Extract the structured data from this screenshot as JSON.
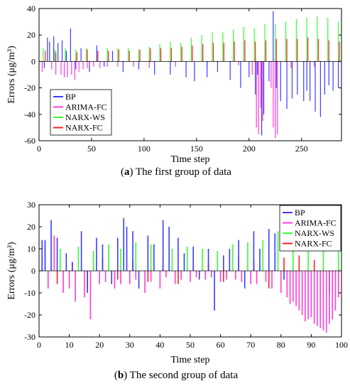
{
  "chart_data": [
    {
      "type": "bar",
      "caption_letter": "a",
      "caption_prefix": "(",
      "caption_suffix": ") The first group of data",
      "xlabel": "Time step",
      "ylabel": "Errors (μg/m³)",
      "xlim": [
        0,
        288
      ],
      "ylim": [
        -60,
        40
      ],
      "xticks": [
        0,
        50,
        100,
        150,
        200,
        250
      ],
      "yticks": [
        -60,
        -40,
        -20,
        0,
        20,
        40
      ],
      "legend_position": "bottom-left",
      "grid": false,
      "series_colors": [
        "#3b3bff",
        "#ff3bd8",
        "#33ff33",
        "#ff2222"
      ],
      "series": [
        {
          "name": "BP",
          "x": [
            5,
            8,
            10,
            14,
            18,
            22,
            26,
            30,
            35,
            40,
            48,
            55,
            62,
            70,
            80,
            95,
            110,
            125,
            140,
            148,
            160,
            170,
            182,
            192,
            200,
            206,
            208,
            212,
            214,
            219,
            223,
            226,
            230,
            236,
            241,
            246,
            252,
            255,
            258,
            263,
            268,
            272,
            276,
            280,
            285
          ],
          "y": [
            -5,
            18,
            15,
            19,
            14,
            16,
            8,
            25,
            -6,
            10,
            -8,
            12,
            -4,
            8,
            -8,
            -6,
            -10,
            -10,
            -12,
            -15,
            -12,
            -8,
            -14,
            -20,
            -12,
            -25,
            -10,
            -56,
            -40,
            -15,
            38,
            -20,
            -30,
            -36,
            -28,
            -25,
            -30,
            -22,
            -30,
            -38,
            -42,
            -25,
            -18,
            -22,
            -20
          ]
        },
        {
          "name": "ARIMA-FC",
          "x": [
            3,
            12,
            16,
            21,
            24,
            27,
            31,
            34,
            38,
            42,
            46,
            52,
            58,
            65,
            75,
            90,
            105,
            130,
            160,
            190,
            203,
            207,
            209,
            211,
            213,
            221,
            223,
            225,
            227,
            240,
            262
          ],
          "y": [
            -8,
            -6,
            -10,
            -10,
            -12,
            -12,
            -10,
            -14,
            -8,
            -6,
            -5,
            -4,
            -5,
            -4,
            -4,
            -4,
            -5,
            -4,
            -4,
            -3,
            -10,
            -50,
            -55,
            -35,
            -45,
            -20,
            -50,
            -58,
            -55,
            -5,
            -4
          ]
        },
        {
          "name": "NARX-WS",
          "x": [
            4,
            15,
            25,
            35,
            45,
            55,
            65,
            75,
            85,
            95,
            105,
            115,
            125,
            135,
            145,
            155,
            165,
            175,
            185,
            195,
            205,
            215,
            225,
            235,
            245,
            255,
            265,
            275,
            285
          ],
          "y": [
            10,
            9,
            10,
            9,
            10,
            9,
            10,
            10,
            10,
            9,
            11,
            13,
            15,
            14,
            18,
            20,
            22,
            22,
            24,
            26,
            25,
            28,
            28,
            30,
            32,
            33,
            34,
            33,
            30
          ]
        },
        {
          "name": "NARX-FC",
          "x": [
            6,
            16,
            26,
            36,
            46,
            56,
            66,
            76,
            86,
            96,
            106,
            116,
            126,
            136,
            146,
            156,
            166,
            176,
            186,
            196,
            206,
            216,
            226,
            236,
            246,
            256,
            266,
            276,
            286
          ],
          "y": [
            8,
            7,
            8,
            7,
            9,
            8,
            8,
            9,
            8,
            9,
            10,
            10,
            10,
            11,
            12,
            13,
            14,
            14,
            15,
            16,
            15,
            16,
            17,
            17,
            17,
            18,
            17,
            16,
            15
          ]
        }
      ]
    },
    {
      "type": "bar",
      "caption_letter": "b",
      "caption_prefix": "(",
      "caption_suffix": ") The second group of data",
      "xlabel": "Time step",
      "ylabel": "Errors (μg/m³)",
      "xlim": [
        0,
        100
      ],
      "ylim": [
        -30,
        30
      ],
      "xticks": [
        0,
        10,
        20,
        30,
        40,
        50,
        60,
        70,
        80,
        90,
        100
      ],
      "yticks": [
        -30,
        -20,
        -10,
        0,
        10,
        20,
        30
      ],
      "legend_position": "top-right",
      "grid": false,
      "series_colors": [
        "#3b3bff",
        "#ff3bd8",
        "#33ff33",
        "#ff2222"
      ],
      "series": [
        {
          "name": "BP",
          "x": [
            1,
            2,
            4,
            6,
            9,
            11,
            14,
            16,
            19,
            21,
            24,
            26,
            28,
            29,
            31,
            33,
            36,
            38,
            41,
            43,
            46,
            48,
            51,
            53,
            56,
            58,
            61,
            63,
            66,
            68,
            71,
            73,
            76,
            78,
            81
          ],
          "y": [
            14,
            14,
            23,
            15,
            8,
            4,
            18,
            -10,
            15,
            12,
            -6,
            15,
            24,
            20,
            18,
            -8,
            16,
            12,
            23,
            20,
            15,
            8,
            11,
            -4,
            10,
            -18,
            7,
            10,
            14,
            -8,
            18,
            10,
            19,
            17,
            -4
          ]
        },
        {
          "name": "ARIMA-FC",
          "x": [
            3,
            5,
            8,
            10,
            12,
            15,
            17,
            20,
            22,
            25,
            27,
            30,
            32,
            35,
            37,
            40,
            42,
            45,
            47,
            50,
            52,
            55,
            57,
            60,
            62,
            65,
            67,
            70,
            72,
            75,
            77,
            80,
            82,
            83,
            84,
            85,
            86,
            87,
            88,
            89,
            90,
            91,
            92,
            93,
            94,
            95,
            96,
            97,
            98,
            99
          ],
          "y": [
            -8,
            16,
            -10,
            -8,
            -14,
            -12,
            -22,
            -6,
            -5,
            -8,
            -6,
            -6,
            -4,
            -10,
            -5,
            -8,
            -3,
            -6,
            -4,
            -5,
            -3,
            -4,
            -3,
            -5,
            -4,
            -4,
            -5,
            -6,
            -6,
            -5,
            -8,
            -10,
            -12,
            -15,
            -14,
            -16,
            -18,
            -20,
            -23,
            -22,
            -21,
            -24,
            -25,
            -26,
            -27,
            -28,
            -24,
            -22,
            -18,
            -12
          ]
        },
        {
          "name": "NARX-WS",
          "x": [
            2,
            7,
            13,
            18,
            23,
            27,
            32,
            37,
            44,
            49,
            54,
            59,
            64,
            69,
            74,
            79,
            84,
            89,
            94,
            99
          ],
          "y": [
            12,
            10,
            11,
            9,
            12,
            10,
            13,
            12,
            10,
            11,
            10,
            9,
            12,
            13,
            14,
            18,
            16,
            14,
            13,
            15
          ]
        },
        {
          "name": "NARX-FC",
          "x": [
            1,
            6,
            11,
            16,
            21,
            26,
            31,
            36,
            41,
            46,
            51,
            56,
            61,
            66,
            71,
            76,
            81,
            86,
            91,
            96
          ],
          "y": [
            5,
            -6,
            4,
            -8,
            6,
            -4,
            5,
            -5,
            4,
            -6,
            5,
            4,
            -5,
            6,
            4,
            -8,
            6,
            7,
            5,
            -10
          ]
        }
      ]
    }
  ]
}
